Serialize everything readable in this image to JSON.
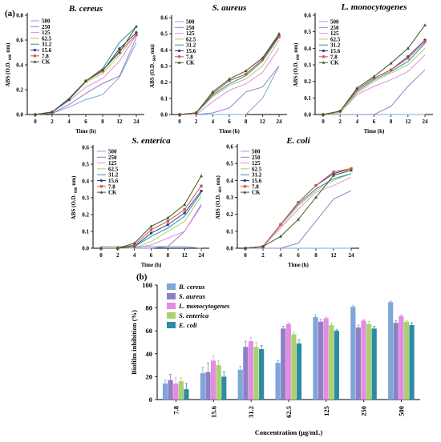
{
  "panel_labels": {
    "a": "(a)",
    "b": "(b)"
  },
  "chart_data": [
    {
      "type": "line",
      "title": "B. cereus",
      "xlabel": "Time (h)",
      "ylabel": "ABS (O.D. 600 nm)",
      "ylabel_parts": {
        "main": "ABS (O.D.",
        "sub": "600",
        "end": "nm)"
      },
      "x": [
        "0",
        "2",
        "4",
        "6",
        "8",
        "12",
        "24"
      ],
      "ylim": [
        0,
        0.8
      ],
      "yticks": [
        "0.0",
        "0.2",
        "0.4",
        "0.6",
        "0.8"
      ],
      "legend_position": "top-left",
      "series": [
        {
          "name": "500",
          "color": "#7fa8d6",
          "marker": "none",
          "values": [
            0.0,
            0.01,
            0.06,
            0.12,
            0.16,
            0.3,
            0.58
          ]
        },
        {
          "name": "250",
          "color": "#8f84c4",
          "marker": "none",
          "values": [
            0.0,
            0.01,
            0.08,
            0.17,
            0.25,
            0.31,
            0.62
          ]
        },
        {
          "name": "125",
          "color": "#e48de0",
          "marker": "none",
          "values": [
            0.0,
            0.02,
            0.11,
            0.22,
            0.29,
            0.43,
            0.64
          ]
        },
        {
          "name": "62.5",
          "color": "#a5d06b",
          "marker": "none",
          "values": [
            0.0,
            0.02,
            0.12,
            0.26,
            0.33,
            0.48,
            0.65
          ]
        },
        {
          "name": "31.2",
          "color": "#2d8fa5",
          "marker": "none",
          "values": [
            0.0,
            0.02,
            0.13,
            0.27,
            0.37,
            0.58,
            0.71
          ]
        },
        {
          "name": "15.6",
          "color": "#2e3f8c",
          "marker": "circle",
          "values": [
            0.0,
            0.02,
            0.12,
            0.27,
            0.35,
            0.53,
            0.66
          ]
        },
        {
          "name": "7.8",
          "color": "#d9534f",
          "marker": "square",
          "values": [
            0.0,
            0.02,
            0.12,
            0.27,
            0.35,
            0.51,
            0.64
          ]
        },
        {
          "name": "CK",
          "color": "#3a5a1e",
          "marker": "triangle",
          "values": [
            0.0,
            0.02,
            0.12,
            0.27,
            0.36,
            0.5,
            0.71
          ]
        }
      ]
    },
    {
      "type": "line",
      "title": "S. aureus",
      "xlabel": "Time (h)",
      "ylabel": "ABS (O.D. 600 nm)",
      "ylabel_parts": {
        "main": "ABS (O.D.",
        "sub": "600",
        "end": "nm)"
      },
      "x": [
        "0",
        "2",
        "4",
        "6",
        "8",
        "12",
        "24"
      ],
      "ylim": [
        0,
        0.6
      ],
      "yticks": [
        "0.0",
        "0.1",
        "0.2",
        "0.3",
        "0.4",
        "0.5",
        "0.6"
      ],
      "legend_position": "top-left",
      "series": [
        {
          "name": "500",
          "color": "#7fa8d6",
          "marker": "none",
          "values": [
            0.0,
            0.0,
            0.0,
            0.0,
            0.0,
            0.1,
            0.3
          ]
        },
        {
          "name": "250",
          "color": "#8f84c4",
          "marker": "none",
          "values": [
            0.0,
            0.0,
            0.01,
            0.04,
            0.14,
            0.17,
            0.3
          ]
        },
        {
          "name": "125",
          "color": "#e48de0",
          "marker": "none",
          "values": [
            0.0,
            0.0,
            0.08,
            0.15,
            0.19,
            0.26,
            0.41
          ]
        },
        {
          "name": "62.5",
          "color": "#a5d06b",
          "marker": "none",
          "values": [
            0.0,
            0.01,
            0.11,
            0.18,
            0.22,
            0.3,
            0.46
          ]
        },
        {
          "name": "31.2",
          "color": "#2d8fa5",
          "marker": "none",
          "values": [
            0.0,
            0.01,
            0.12,
            0.19,
            0.24,
            0.33,
            0.48
          ]
        },
        {
          "name": "15.6",
          "color": "#2e3f8c",
          "marker": "circle",
          "values": [
            0.0,
            0.01,
            0.13,
            0.21,
            0.25,
            0.34,
            0.49
          ]
        },
        {
          "name": "7.8",
          "color": "#d9534f",
          "marker": "square",
          "values": [
            0.0,
            0.01,
            0.13,
            0.21,
            0.25,
            0.34,
            0.48
          ]
        },
        {
          "name": "CK",
          "color": "#3a5a1e",
          "marker": "triangle",
          "values": [
            0.0,
            0.01,
            0.14,
            0.22,
            0.27,
            0.35,
            0.5
          ]
        }
      ]
    },
    {
      "type": "line",
      "title": "L. monocytogenes",
      "xlabel": "Time (h)",
      "ylabel": "ABS (O.D. 600 nm)",
      "ylabel_parts": {
        "main": "ABS (O.D.",
        "sub": "600",
        "end": "nm)"
      },
      "x": [
        "0",
        "2",
        "4",
        "6",
        "8",
        "12",
        "24"
      ],
      "ylim": [
        0,
        0.6
      ],
      "yticks": [
        "0.0",
        "0.1",
        "0.2",
        "0.3",
        "0.4",
        "0.5",
        "0.6"
      ],
      "legend_position": "top-left",
      "series": [
        {
          "name": "500",
          "color": "#7fa8d6",
          "marker": "none",
          "values": [
            0.0,
            0.0,
            0.0,
            0.0,
            0.0,
            0.0,
            0.0
          ]
        },
        {
          "name": "250",
          "color": "#8f84c4",
          "marker": "none",
          "values": [
            0.0,
            0.0,
            0.0,
            0.0,
            0.05,
            0.17,
            0.27
          ]
        },
        {
          "name": "125",
          "color": "#e48de0",
          "marker": "none",
          "values": [
            0.0,
            0.01,
            0.12,
            0.17,
            0.21,
            0.26,
            0.36
          ]
        },
        {
          "name": "62.5",
          "color": "#a5d06b",
          "marker": "none",
          "values": [
            0.0,
            0.01,
            0.13,
            0.2,
            0.25,
            0.3,
            0.4
          ]
        },
        {
          "name": "31.2",
          "color": "#2d8fa5",
          "marker": "none",
          "values": [
            0.0,
            0.02,
            0.14,
            0.21,
            0.26,
            0.32,
            0.43
          ]
        },
        {
          "name": "15.6",
          "color": "#2e3f8c",
          "marker": "circle",
          "values": [
            0.0,
            0.02,
            0.15,
            0.22,
            0.27,
            0.35,
            0.45
          ]
        },
        {
          "name": "7.8",
          "color": "#d9534f",
          "marker": "square",
          "values": [
            0.0,
            0.02,
            0.15,
            0.22,
            0.27,
            0.34,
            0.44
          ]
        },
        {
          "name": "CK",
          "color": "#3a5a1e",
          "marker": "triangle",
          "values": [
            0.0,
            0.02,
            0.16,
            0.23,
            0.31,
            0.4,
            0.54
          ]
        }
      ]
    },
    {
      "type": "line",
      "title": "S. enterica",
      "xlabel": "Time (h)",
      "ylabel": "ABS (O.D. 600 nm)",
      "ylabel_parts": {
        "main": "ABS (O.D.",
        "sub": "600",
        "end": "nm)"
      },
      "x": [
        "0",
        "2",
        "4",
        "6",
        "8",
        "12",
        "24"
      ],
      "ylim": [
        0,
        0.6
      ],
      "yticks": [
        "0.0",
        "0.1",
        "0.2",
        "0.3",
        "0.4",
        "0.5",
        "0.6"
      ],
      "legend_position": "top-left",
      "series": [
        {
          "name": "500",
          "color": "#7fa8d6",
          "marker": "none",
          "values": [
            0.01,
            0.01,
            0.01,
            0.01,
            0.01,
            0.01,
            0.0
          ]
        },
        {
          "name": "250",
          "color": "#8f84c4",
          "marker": "none",
          "values": [
            0.0,
            0.0,
            0.0,
            0.0,
            0.01,
            0.1,
            0.26
          ]
        },
        {
          "name": "125",
          "color": "#e48de0",
          "marker": "none",
          "values": [
            0.0,
            0.0,
            0.0,
            0.02,
            0.06,
            0.1,
            0.25
          ]
        },
        {
          "name": "62.5",
          "color": "#a5d06b",
          "marker": "none",
          "values": [
            0.0,
            0.0,
            0.0,
            0.04,
            0.1,
            0.16,
            0.31
          ]
        },
        {
          "name": "31.2",
          "color": "#2d8fa5",
          "marker": "none",
          "values": [
            0.0,
            0.0,
            0.01,
            0.07,
            0.12,
            0.19,
            0.33
          ]
        },
        {
          "name": "15.6",
          "color": "#2e3f8c",
          "marker": "circle",
          "values": [
            0.0,
            0.0,
            0.01,
            0.09,
            0.14,
            0.21,
            0.34
          ]
        },
        {
          "name": "7.8",
          "color": "#d9534f",
          "marker": "square",
          "values": [
            0.0,
            0.0,
            0.02,
            0.11,
            0.16,
            0.23,
            0.37
          ]
        },
        {
          "name": "CK",
          "color": "#3a5a1e",
          "marker": "triangle",
          "values": [
            0.0,
            0.0,
            0.03,
            0.13,
            0.18,
            0.26,
            0.43
          ]
        }
      ]
    },
    {
      "type": "line",
      "title": "E. coli",
      "xlabel": "Time (h)",
      "ylabel": "ABS (O.D. 600 nm)",
      "ylabel_parts": {
        "main": "ABS (O.D.",
        "sub": "600",
        "end": "nm)"
      },
      "x": [
        "0",
        "2",
        "4",
        "6",
        "8",
        "12",
        "24"
      ],
      "ylim": [
        0,
        0.6
      ],
      "yticks": [
        "0.0",
        "0.1",
        "0.2",
        "0.3",
        "0.4",
        "0.5",
        "0.6"
      ],
      "legend_position": "top-left",
      "series": [
        {
          "name": "500",
          "color": "#7fa8d6",
          "marker": "none",
          "values": [
            0.0,
            0.0,
            0.0,
            0.0,
            0.0,
            0.0,
            0.0
          ]
        },
        {
          "name": "250",
          "color": "#8f84c4",
          "marker": "none",
          "values": [
            0.0,
            0.0,
            0.0,
            0.03,
            0.16,
            0.29,
            0.34
          ]
        },
        {
          "name": "125",
          "color": "#e48de0",
          "marker": "none",
          "values": [
            0.0,
            0.01,
            0.12,
            0.23,
            0.33,
            0.37,
            0.42
          ]
        },
        {
          "name": "62.5",
          "color": "#a5d06b",
          "marker": "none",
          "values": [
            0.0,
            0.01,
            0.13,
            0.25,
            0.34,
            0.4,
            0.44
          ]
        },
        {
          "name": "31.2",
          "color": "#2d8fa5",
          "marker": "none",
          "values": [
            0.0,
            0.01,
            0.14,
            0.26,
            0.35,
            0.41,
            0.44
          ]
        },
        {
          "name": "15.6",
          "color": "#2e3f8c",
          "marker": "circle",
          "values": [
            0.0,
            0.01,
            0.14,
            0.27,
            0.37,
            0.44,
            0.47
          ]
        },
        {
          "name": "7.8",
          "color": "#d9534f",
          "marker": "square",
          "values": [
            0.0,
            0.01,
            0.14,
            0.27,
            0.37,
            0.45,
            0.47
          ]
        },
        {
          "name": "CK",
          "color": "#3a5a1e",
          "marker": "triangle",
          "values": [
            0.0,
            0.01,
            0.07,
            0.17,
            0.3,
            0.43,
            0.46
          ]
        }
      ]
    },
    {
      "type": "bar",
      "title": "",
      "xlabel": "Concentration (μg/mL)",
      "ylabel": "Biofilm inhibition (%)",
      "categories": [
        "7.8",
        "15.6",
        "31.2",
        "62.5",
        "125",
        "250",
        "500"
      ],
      "ylim": [
        0,
        100
      ],
      "yticks": [
        "0",
        "20",
        "40",
        "60",
        "80",
        "100"
      ],
      "legend_position": "top-left",
      "series": [
        {
          "name": "B. cereus",
          "color": "#7ea6d8",
          "values": [
            14,
            23,
            26,
            32,
            72,
            81,
            85
          ],
          "errors": [
            3,
            5,
            3,
            2,
            2,
            1,
            1
          ]
        },
        {
          "name": "S. aureus",
          "color": "#8f7fc8",
          "values": [
            17,
            24,
            46,
            62,
            68,
            63,
            67
          ],
          "errors": [
            5,
            8,
            5,
            2,
            2,
            2,
            2
          ]
        },
        {
          "name": "L. monocytogenes",
          "color": "#e28de0",
          "values": [
            14,
            34,
            51,
            66,
            71,
            69,
            73
          ],
          "errors": [
            5,
            4,
            3,
            1,
            1,
            1,
            1
          ]
        },
        {
          "name": "S. enterica",
          "color": "#a9d26e",
          "values": [
            16,
            30,
            46,
            57,
            65,
            66,
            68
          ],
          "errors": [
            3,
            4,
            4,
            2,
            2,
            2,
            1
          ]
        },
        {
          "name": "E. coli",
          "color": "#2f8aa3",
          "values": [
            9,
            20,
            44,
            49,
            60,
            62,
            65
          ],
          "errors": [
            5,
            4,
            3,
            3,
            1,
            2,
            2
          ]
        }
      ]
    }
  ]
}
